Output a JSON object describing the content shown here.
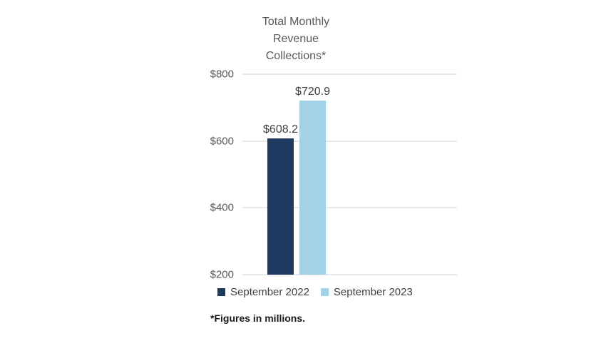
{
  "chart_data": {
    "type": "bar",
    "title": "Total Monthly Revenue Collections*",
    "categories": [
      "September 2022",
      "September 2023"
    ],
    "series": [
      {
        "name": "September 2022",
        "value": 608.2,
        "data_label": "$608.2",
        "color": "#1f3a60"
      },
      {
        "name": "September 2023",
        "value": 720.9,
        "data_label": "$720.9",
        "color": "#a1d2e6"
      }
    ],
    "y_axis": {
      "min": 200,
      "max": 800,
      "tick_interval": 200,
      "ticks": [
        {
          "value": 800,
          "label": "$800"
        },
        {
          "value": 600,
          "label": "$600"
        },
        {
          "value": 400,
          "label": "$400"
        },
        {
          "value": 200,
          "label": "$200"
        }
      ]
    },
    "grid": true,
    "legend_position": "bottom",
    "footnote": "*Figures in millions.",
    "title_color": "#595959",
    "axis_label_color": "#595959",
    "data_label_color": "#404040",
    "gridline_color": "#e9e9e9"
  }
}
